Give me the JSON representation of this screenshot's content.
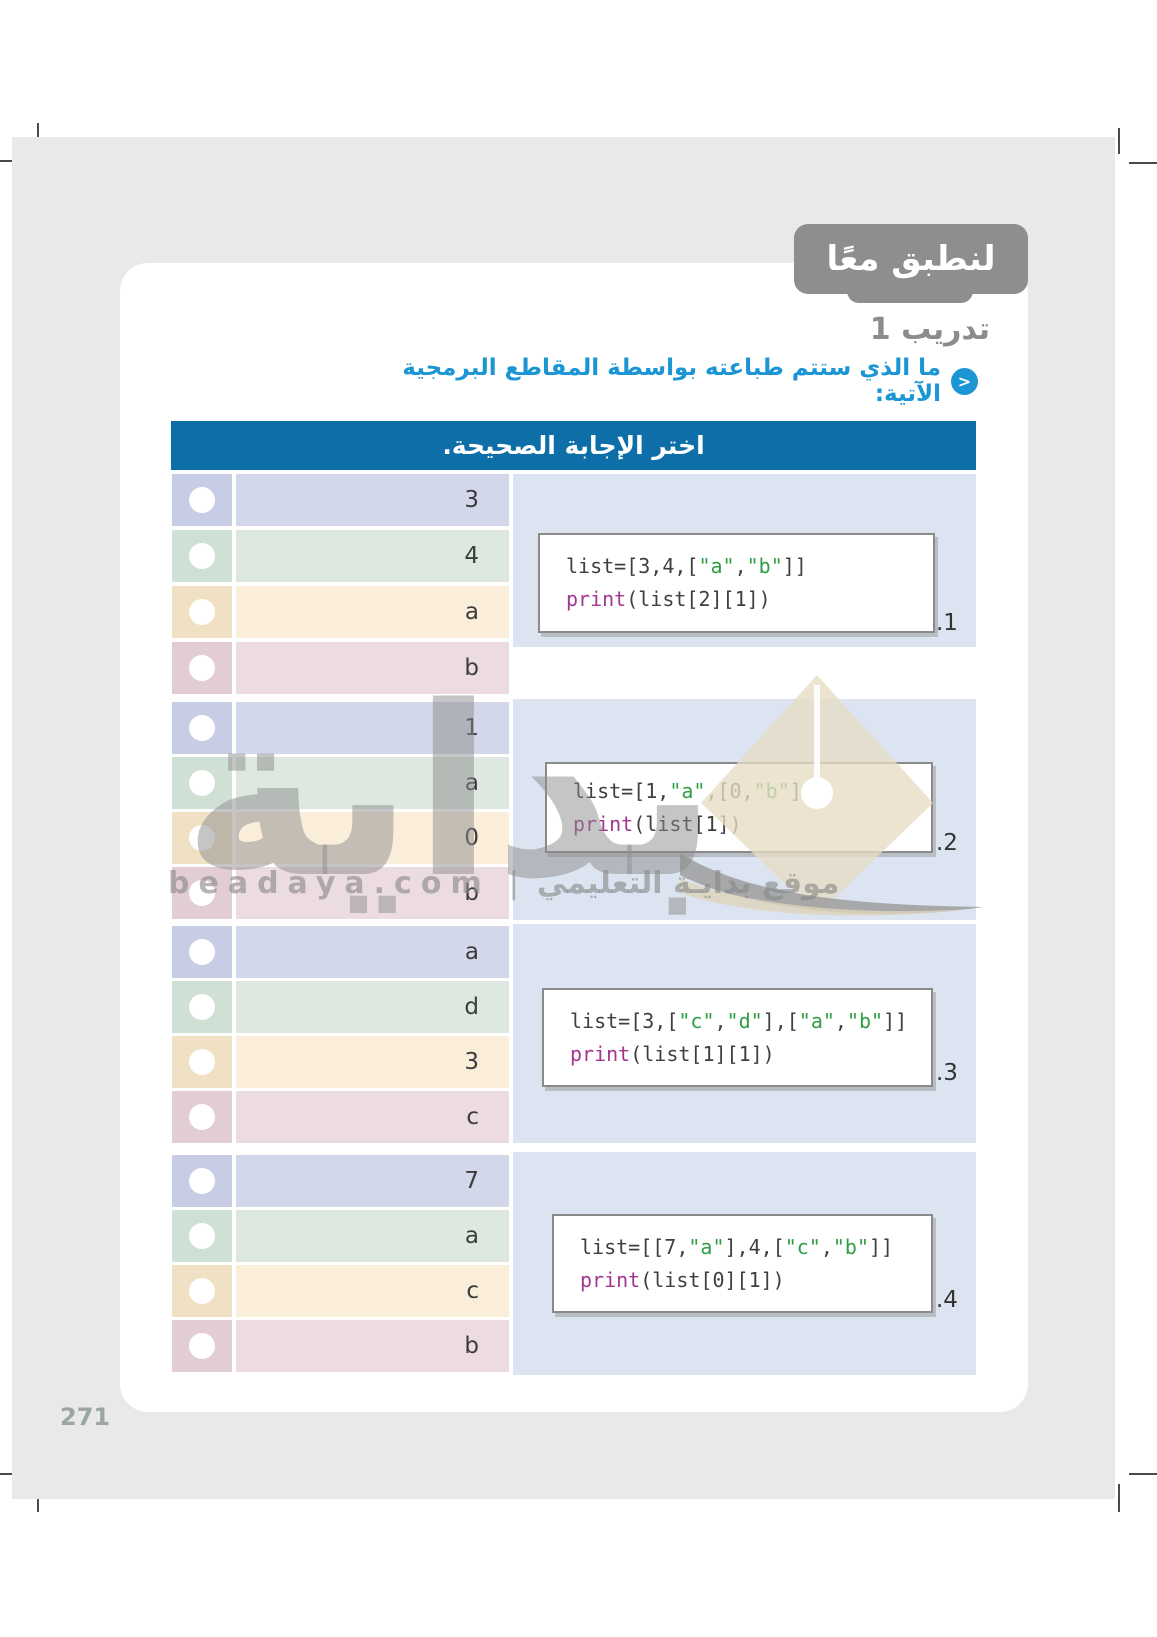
{
  "badge_label": "لنطبق معًا",
  "exercise_title": "تدريب 1",
  "question_prompt": "ما الذي ستتم طباعته بواسطة المقاطع البرمجية الآتية:",
  "prompt_icon_glyph": "<",
  "table_header": "اختر الإجابة الصحيحة.",
  "page_number": "271",
  "watermark": {
    "big_text": "بداية",
    "domain": "beadaya.com",
    "separator": "|",
    "site_label": "موقع بدايـة التعليمي"
  },
  "colors": {
    "header_blue": "#0d6ea8",
    "panel_blue": "#dce4f1",
    "prompt_blue": "#1b95d4",
    "badge_gray": "#8e8e8e",
    "string_green": "#2f9e44",
    "keyword_magenta": "#a23790"
  },
  "questions": [
    {
      "number": ".1",
      "options": [
        "3",
        "4",
        "a",
        "b"
      ],
      "code": [
        [
          {
            "t": "list=[3,4,[",
            "c": "p"
          },
          {
            "t": "\"a\"",
            "c": "s"
          },
          {
            "t": ",",
            "c": "p"
          },
          {
            "t": "\"b\"",
            "c": "s"
          },
          {
            "t": "]]",
            "c": "p"
          }
        ],
        [
          {
            "t": "print",
            "c": "k"
          },
          {
            "t": "(list[2][1])",
            "c": "p"
          }
        ]
      ]
    },
    {
      "number": ".2",
      "options": [
        "1",
        "a",
        "0",
        "b"
      ],
      "code": [
        [
          {
            "t": "list=[1,",
            "c": "p"
          },
          {
            "t": "\"a\"",
            "c": "s"
          },
          {
            "t": ",[0,",
            "c": "p"
          },
          {
            "t": "\"b\"",
            "c": "s"
          },
          {
            "t": "]]",
            "c": "p"
          }
        ],
        [
          {
            "t": "print",
            "c": "k"
          },
          {
            "t": "(list[1])",
            "c": "p"
          }
        ]
      ]
    },
    {
      "number": ".3",
      "options": [
        "a",
        "d",
        "3",
        "c"
      ],
      "code": [
        [
          {
            "t": "list=[3,[",
            "c": "p"
          },
          {
            "t": "\"c\"",
            "c": "s"
          },
          {
            "t": ",",
            "c": "p"
          },
          {
            "t": "\"d\"",
            "c": "s"
          },
          {
            "t": "],[",
            "c": "p"
          },
          {
            "t": "\"a\"",
            "c": "s"
          },
          {
            "t": ",",
            "c": "p"
          },
          {
            "t": "\"b\"",
            "c": "s"
          },
          {
            "t": "]]",
            "c": "p"
          }
        ],
        [
          {
            "t": "print",
            "c": "k"
          },
          {
            "t": "(list[1][1])",
            "c": "p"
          }
        ]
      ]
    },
    {
      "number": ".4",
      "options": [
        "7",
        "a",
        "c",
        "b"
      ],
      "code": [
        [
          {
            "t": "list=[[7,",
            "c": "p"
          },
          {
            "t": "\"a\"",
            "c": "s"
          },
          {
            "t": "],4,[",
            "c": "p"
          },
          {
            "t": "\"c\"",
            "c": "s"
          },
          {
            "t": ",",
            "c": "p"
          },
          {
            "t": "\"b\"",
            "c": "s"
          },
          {
            "t": "]]",
            "c": "p"
          }
        ],
        [
          {
            "t": "print",
            "c": "k"
          },
          {
            "t": "(list[0][1])",
            "c": "p"
          }
        ]
      ]
    }
  ]
}
